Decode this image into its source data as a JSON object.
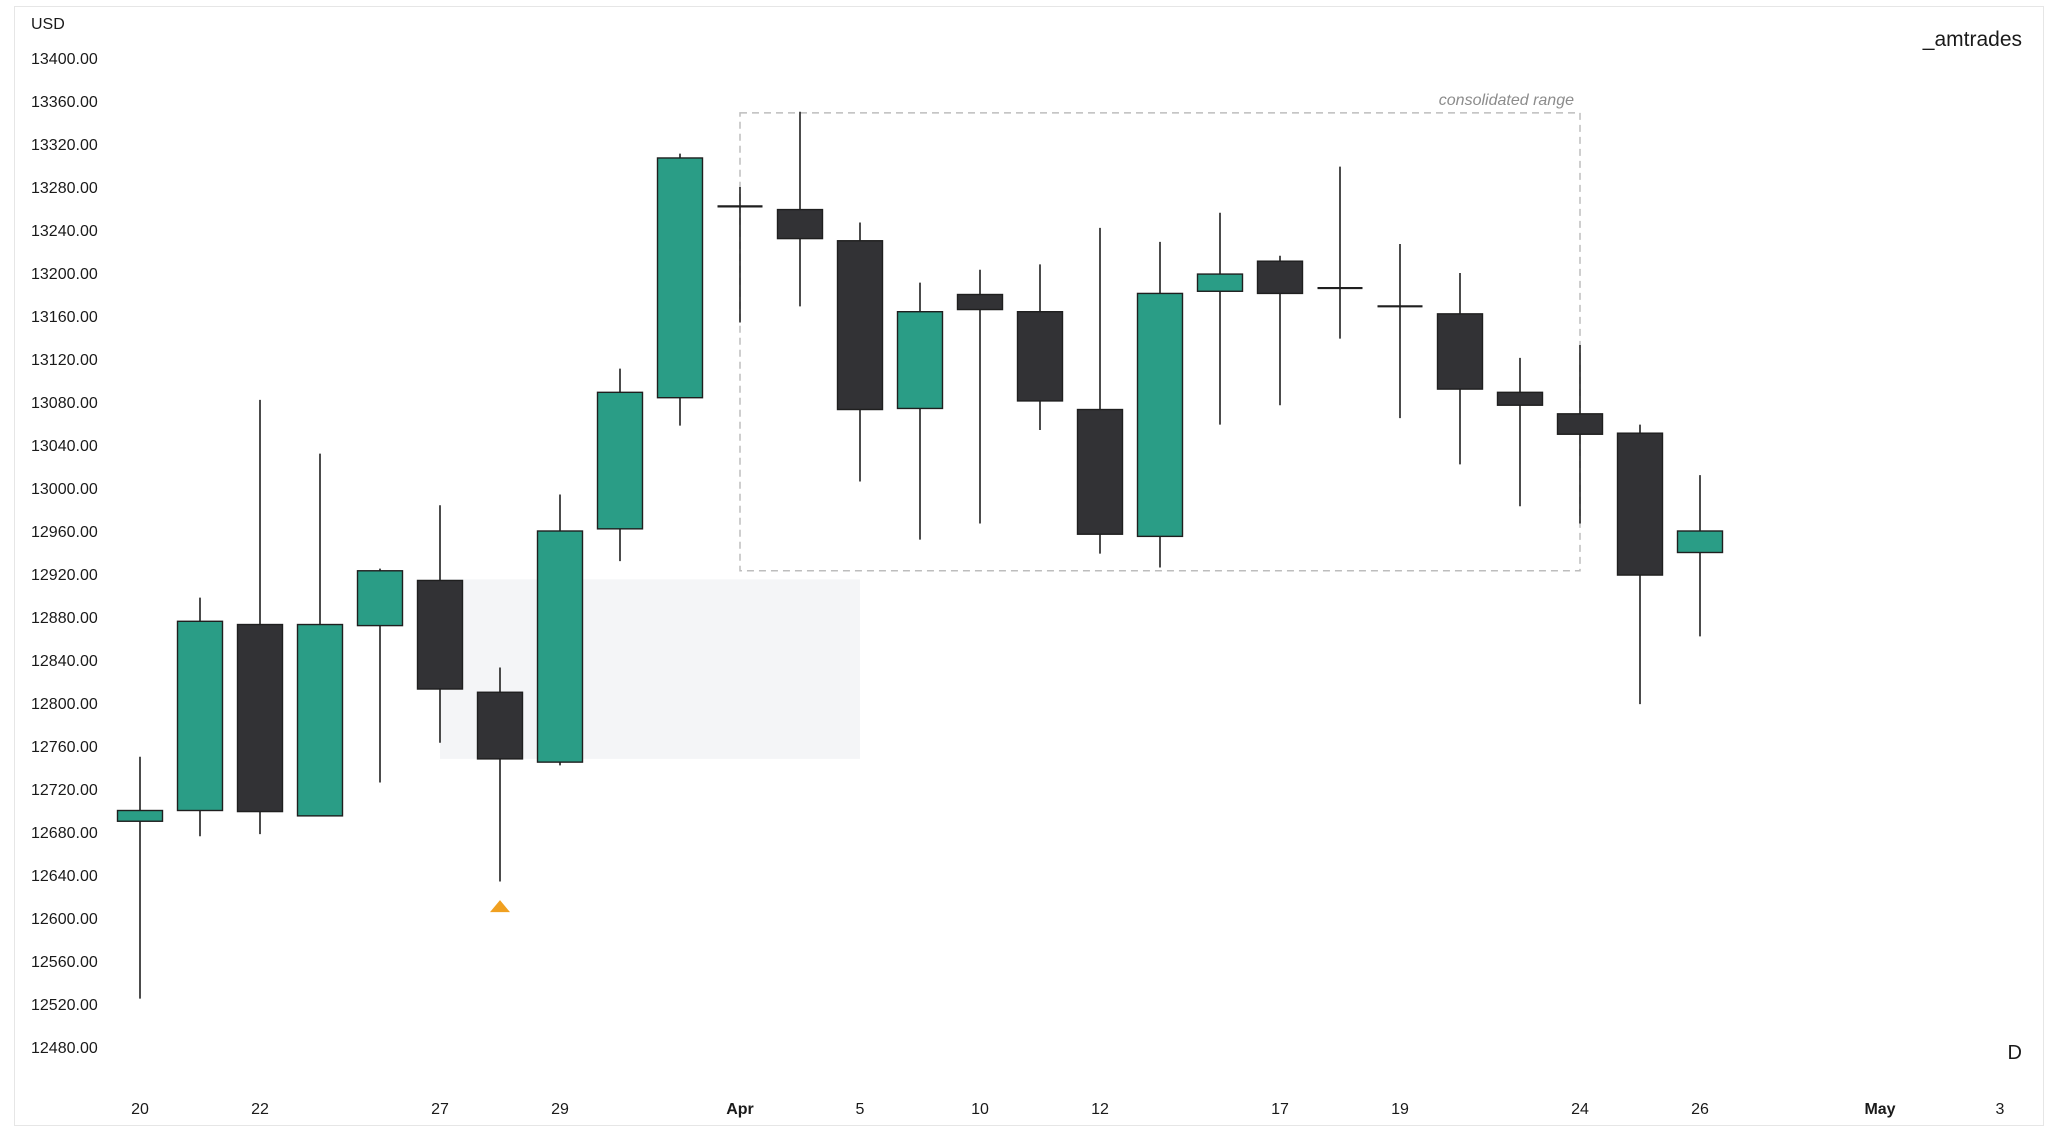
{
  "brand": "_amtrades",
  "period": "D",
  "currency": "USD",
  "range_label": "consolidated range",
  "colors": {
    "bull": "#2a9d86",
    "bear": "#323235",
    "outline": "#1f1f1f",
    "wick": "#1f1f1f",
    "range_border": "#bdbdbd",
    "shade": "#f4f5f7",
    "marker": "#f0a020"
  },
  "chart_data": {
    "type": "candlestick",
    "ylabel": "USD",
    "ylim": [
      12460,
      13430
    ],
    "y_ticks": [
      "13400.00",
      "13360.00",
      "13320.00",
      "13280.00",
      "13240.00",
      "13200.00",
      "13160.00",
      "13120.00",
      "13080.00",
      "13040.00",
      "13000.00",
      "12960.00",
      "12920.00",
      "12880.00",
      "12840.00",
      "12800.00",
      "12760.00",
      "12720.00",
      "12680.00",
      "12640.00",
      "12600.00",
      "12560.00",
      "12520.00",
      "12480.00"
    ],
    "x_ticks": [
      {
        "label": "20",
        "slot": 0
      },
      {
        "label": "22",
        "slot": 2
      },
      {
        "label": "27",
        "slot": 5
      },
      {
        "label": "29",
        "slot": 7
      },
      {
        "label": "Apr",
        "slot": 10,
        "bold": true
      },
      {
        "label": "5",
        "slot": 12
      },
      {
        "label": "10",
        "slot": 14
      },
      {
        "label": "12",
        "slot": 16
      },
      {
        "label": "17",
        "slot": 19
      },
      {
        "label": "19",
        "slot": 21
      },
      {
        "label": "24",
        "slot": 24
      },
      {
        "label": "26",
        "slot": 26
      },
      {
        "label": "May",
        "slot": 29,
        "bold": true
      },
      {
        "label": "3",
        "slot": 31
      }
    ],
    "candles": [
      {
        "slot": 0,
        "open": 12690,
        "high": 12750,
        "low": 12525,
        "close": 12700
      },
      {
        "slot": 1,
        "open": 12700,
        "high": 12898,
        "low": 12676,
        "close": 12876
      },
      {
        "slot": 2,
        "open": 12873,
        "high": 13082,
        "low": 12678,
        "close": 12699
      },
      {
        "slot": 3,
        "open": 12695,
        "high": 13032,
        "low": 12695,
        "close": 12873
      },
      {
        "slot": 4,
        "open": 12872,
        "high": 12925,
        "low": 12726,
        "close": 12923
      },
      {
        "slot": 5,
        "open": 12914,
        "high": 12984,
        "low": 12763,
        "close": 12813
      },
      {
        "slot": 6,
        "open": 12810,
        "high": 12833,
        "low": 12634,
        "close": 12748
      },
      {
        "slot": 7,
        "open": 12745,
        "high": 12994,
        "low": 12742,
        "close": 12960
      },
      {
        "slot": 8,
        "open": 12962,
        "high": 13111,
        "low": 12932,
        "close": 13089
      },
      {
        "slot": 9,
        "open": 13084,
        "high": 13311,
        "low": 13058,
        "close": 13307
      },
      {
        "slot": 10,
        "open": 13262,
        "high": 13280,
        "low": 13154,
        "close": 13262
      },
      {
        "slot": 11,
        "open": 13259,
        "high": 13350,
        "low": 13169,
        "close": 13232
      },
      {
        "slot": 12,
        "open": 13230,
        "high": 13247,
        "low": 13006,
        "close": 13073
      },
      {
        "slot": 13,
        "open": 13074,
        "high": 13191,
        "low": 12952,
        "close": 13164
      },
      {
        "slot": 14,
        "open": 13180,
        "high": 13203,
        "low": 12967,
        "close": 13166
      },
      {
        "slot": 15,
        "open": 13164,
        "high": 13208,
        "low": 13054,
        "close": 13081
      },
      {
        "slot": 16,
        "open": 13073,
        "high": 13242,
        "low": 12939,
        "close": 12957
      },
      {
        "slot": 17,
        "open": 12955,
        "high": 13229,
        "low": 12926,
        "close": 13181
      },
      {
        "slot": 18,
        "open": 13183,
        "high": 13256,
        "low": 13059,
        "close": 13199
      },
      {
        "slot": 19,
        "open": 13211,
        "high": 13216,
        "low": 13077,
        "close": 13181
      },
      {
        "slot": 20,
        "open": 13187,
        "high": 13299,
        "low": 13139,
        "close": 13185
      },
      {
        "slot": 21,
        "open": 13170,
        "high": 13227,
        "low": 13065,
        "close": 13168
      },
      {
        "slot": 22,
        "open": 13162,
        "high": 13200,
        "low": 13022,
        "close": 13092
      },
      {
        "slot": 23,
        "open": 13089,
        "high": 13121,
        "low": 12983,
        "close": 13077
      },
      {
        "slot": 24,
        "open": 13069,
        "high": 13133,
        "low": 12967,
        "close": 13050
      },
      {
        "slot": 25,
        "open": 13051,
        "high": 13059,
        "low": 12799,
        "close": 12919
      },
      {
        "slot": 26,
        "open": 12940,
        "high": 13012,
        "low": 12862,
        "close": 12960
      }
    ],
    "consolidated_range": {
      "start_slot": 10,
      "end_slot": 24,
      "top": 13349,
      "bottom": 12923
    },
    "shaded_zone": {
      "start_slot": 5,
      "end_slot": 12,
      "top": 12915,
      "bottom": 12748
    },
    "marker": {
      "slot": 6,
      "price": 12611
    }
  }
}
